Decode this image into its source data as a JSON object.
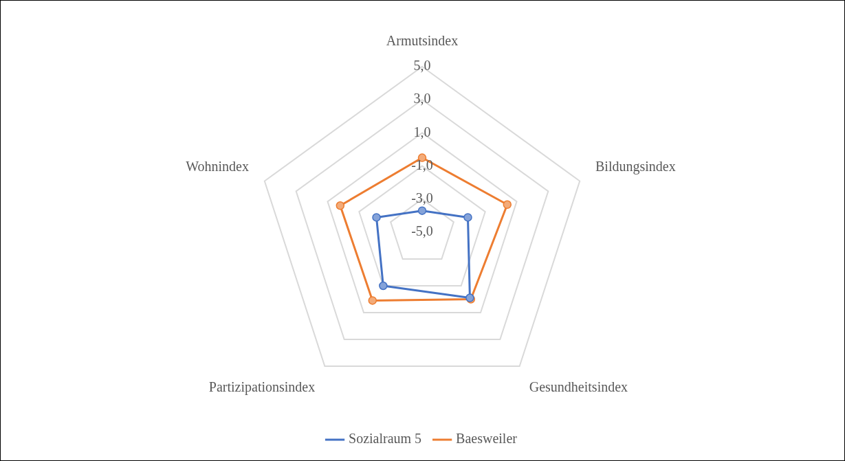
{
  "chart_data": {
    "type": "radar",
    "categories": [
      "Armutsindex",
      "Bildungsindex",
      "Gesundheitsindex",
      "Partizipationsindex",
      "Wohnindex"
    ],
    "series": [
      {
        "name": "Sozialraum 5",
        "color": "#4472c4",
        "values": [
          -3.7,
          -2.1,
          -0.1,
          -1.0,
          -2.1
        ]
      },
      {
        "name": "Baesweiler",
        "color": "#ed7d31",
        "values": [
          -0.5,
          0.4,
          0.0,
          0.1,
          0.2
        ]
      }
    ],
    "ylim": [
      -5,
      5
    ],
    "yticks": [
      {
        "value": -5,
        "label": "-5,0"
      },
      {
        "value": -3,
        "label": "-3,0"
      },
      {
        "value": -1,
        "label": "-1,0"
      },
      {
        "value": 1,
        "label": "1,0"
      },
      {
        "value": 3,
        "label": "3,0"
      },
      {
        "value": 5,
        "label": "5,0"
      }
    ],
    "grid": true,
    "legend": "bottom",
    "marker": "circle",
    "line_style": "solid"
  }
}
